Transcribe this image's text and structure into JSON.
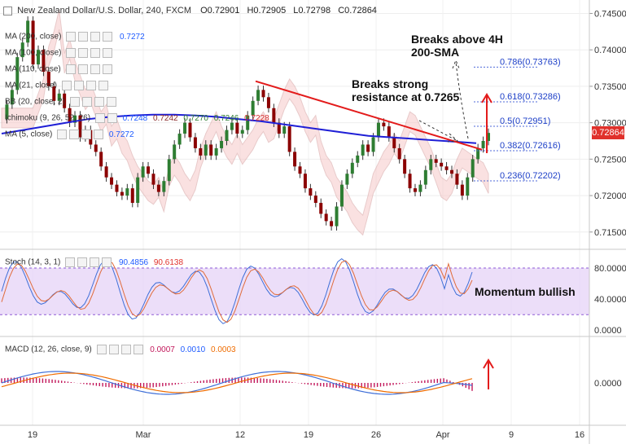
{
  "header": {
    "title": "New Zealand Dollar/U.S. Dollar, 240, FXCM",
    "open": "O0.72901",
    "high": "H0.72905",
    "low": "L0.72798",
    "close": "C0.72864"
  },
  "indicators": [
    {
      "label": "MA (200, close)",
      "value": "0.7272",
      "color": "#1e5bff"
    },
    {
      "label": "MA (100, close)",
      "value": ""
    },
    {
      "label": "MA (110, close)",
      "value": ""
    },
    {
      "label": "MA (21, close)",
      "value": ""
    },
    {
      "label": "BB (20, close, 2)",
      "value": ""
    },
    {
      "label": "Ichimoku (9, 26, 52, 26)",
      "values": [
        "0.7248",
        "0.7242",
        "0.7270",
        "0.7246",
        "0.7228"
      ]
    },
    {
      "label": "MA (5, close)",
      "value": "0.7272"
    }
  ],
  "stoch_header": {
    "label": "Stoch (14, 3, 1)",
    "v1": "90.4856",
    "v2": "90.6138"
  },
  "macd_header": {
    "label": "MACD (12, 26, close, 9)",
    "v1": "0.0007",
    "v2": "0.0010",
    "v3": "0.0003"
  },
  "annotations": {
    "breaks_4h": [
      "Breaks above 4H",
      "200-SMA"
    ],
    "breaks_resistance": [
      "Breaks strong",
      "resistance at 0.7265"
    ],
    "momentum": "Momentum bullish"
  },
  "last_price": "0.72864",
  "chart_data": {
    "type": "candlestick",
    "title": "New Zealand Dollar/U.S. Dollar, 240, FXCM",
    "x_ticks": [
      "19",
      "Mar",
      "12",
      "19",
      "26",
      "Apr",
      "9",
      "16"
    ],
    "price_axis": {
      "ticks": [
        "0.74500",
        "0.74000",
        "0.73500",
        "0.73000",
        "0.72500",
        "0.72000",
        "0.71500"
      ],
      "ylim": [
        0.7133,
        0.7455
      ]
    },
    "stoch_axis": {
      "ticks": [
        "80.0000",
        "40.0000",
        "0.0000"
      ],
      "ylim": [
        -5,
        100
      ]
    },
    "macd_axis": {
      "ticks": [
        "0.0000"
      ]
    },
    "fibonacci": [
      {
        "level": "0.786",
        "price": 0.73763
      },
      {
        "level": "0.618",
        "price": 0.73286
      },
      {
        "level": "0.5",
        "price": 0.72951
      },
      {
        "level": "0.382",
        "price": 0.72616
      },
      {
        "level": "0.236",
        "price": 0.72202
      }
    ],
    "close_series": [
      0.7305,
      0.7325,
      0.7345,
      0.739,
      0.741,
      0.744,
      0.738,
      0.74,
      0.737,
      0.735,
      0.733,
      0.734,
      0.732,
      0.73,
      0.731,
      0.728,
      0.729,
      0.727,
      0.726,
      0.724,
      0.7225,
      0.7215,
      0.7205,
      0.72,
      0.721,
      0.719,
      0.7225,
      0.724,
      0.723,
      0.7215,
      0.7205,
      0.722,
      0.725,
      0.727,
      0.7285,
      0.73,
      0.728,
      0.7265,
      0.7255,
      0.727,
      0.7255,
      0.7265,
      0.7275,
      0.729,
      0.73,
      0.7285,
      0.729,
      0.731,
      0.733,
      0.7345,
      0.7335,
      0.732,
      0.73,
      0.7285,
      0.7295,
      0.726,
      0.724,
      0.723,
      0.721,
      0.72,
      0.719,
      0.7175,
      0.7165,
      0.7158,
      0.7185,
      0.7215,
      0.723,
      0.7245,
      0.7255,
      0.727,
      0.726,
      0.728,
      0.73,
      0.7295,
      0.728,
      0.7265,
      0.725,
      0.723,
      0.721,
      0.7205,
      0.7215,
      0.7235,
      0.725,
      0.7245,
      0.724,
      0.7235,
      0.723,
      0.7215,
      0.72,
      0.7225,
      0.725,
      0.7265,
      0.7275,
      0.7286
    ],
    "sma200": [
      0.7285,
      0.729,
      0.7295,
      0.73,
      0.7305,
      0.7308,
      0.731,
      0.7311,
      0.7311,
      0.731,
      0.7308,
      0.7305,
      0.7302,
      0.7298,
      0.7294,
      0.729,
      0.7286,
      0.7282,
      0.728,
      0.7278,
      0.7276,
      0.7274,
      0.7272
    ],
    "trendline": {
      "from": 0.7357,
      "to": 0.7263
    },
    "stoch_overbought": 80,
    "stoch_oversold": 20
  }
}
